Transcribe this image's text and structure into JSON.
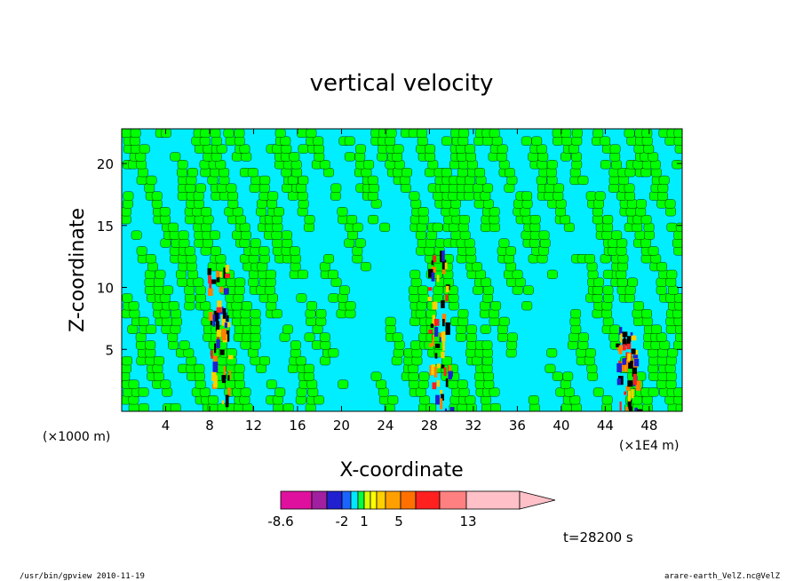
{
  "chart_data": {
    "type": "heatmap",
    "title": "vertical velocity",
    "xlabel": "X-coordinate",
    "ylabel": "Z-coordinate",
    "x_unit_left": "(×1000 m)",
    "x_unit_right": "(×1E4 m)",
    "xlim": [
      0,
      51
    ],
    "ylim": [
      0,
      22.8
    ],
    "x_ticks": [
      "4",
      "8",
      "12",
      "16",
      "20",
      "24",
      "28",
      "32",
      "36",
      "40",
      "44",
      "48"
    ],
    "y_ticks": [
      "5",
      "10",
      "15",
      "20"
    ],
    "colorbar": {
      "levels": [
        -8.6,
        -6,
        -4,
        -2,
        -1,
        0,
        1,
        2,
        3,
        5,
        7,
        10,
        13,
        17
      ],
      "labels": [
        "-8.6",
        "-2",
        "1",
        "5",
        "13"
      ],
      "colors": [
        "#e0109f",
        "#a020a0",
        "#2020d0",
        "#1c64ff",
        "#00e8ff",
        "#00ff40",
        "#d8ff00",
        "#ffff00",
        "#ffd000",
        "#ffa000",
        "#ff7000",
        "#ff2020",
        "#ff8080",
        "#ffc0c8"
      ]
    },
    "annotation_time": "t=28200 s",
    "updraft_cores_x": [
      9,
      29,
      46
    ],
    "field_colors": {
      "negative": "#00eeff",
      "positive": "#00ff00",
      "contour": "#000000"
    }
  },
  "footer": {
    "left": "/usr/bin/gpview   2010-11-19",
    "right": "arare-earth_VelZ.nc@VelZ"
  }
}
